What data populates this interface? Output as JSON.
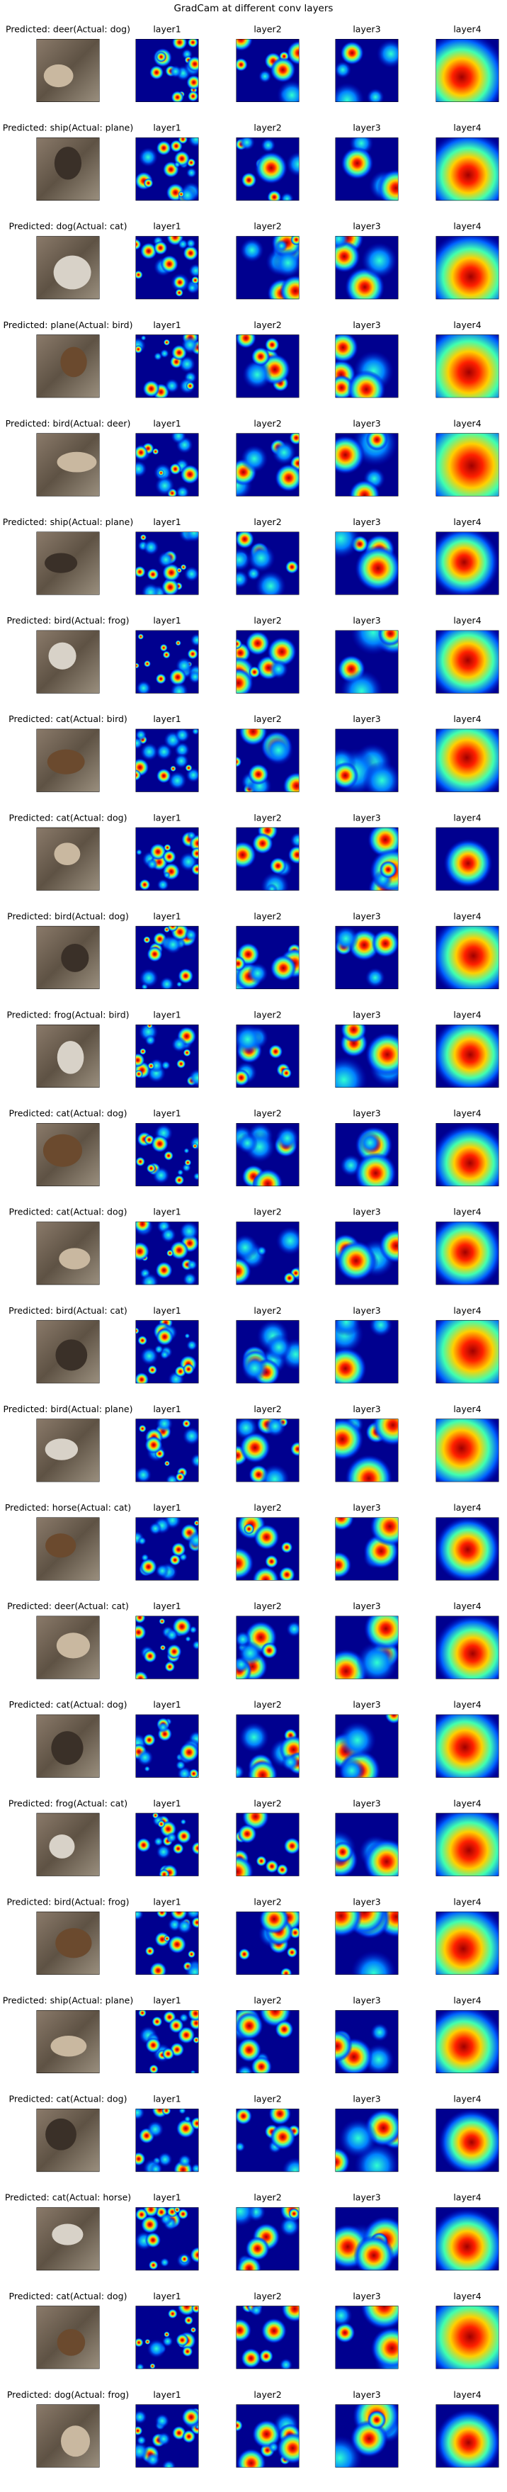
{
  "title": "GradCam at different conv layers",
  "rows": [
    {
      "label": "Predicted: deer(Actual: dog)",
      "layers": [
        "layer1",
        "layer2",
        "layer3",
        "layer4"
      ]
    },
    {
      "label": "Predicted: ship(Actual: plane)",
      "layers": [
        "layer1",
        "layer2",
        "layer3",
        "layer4"
      ]
    },
    {
      "label": "Predicted: dog(Actual: cat)",
      "layers": [
        "layer1",
        "layer2",
        "layer3",
        "layer4"
      ]
    },
    {
      "label": "Predicted: plane(Actual: bird)",
      "layers": [
        "layer1",
        "layer2",
        "layer3",
        "layer4"
      ]
    },
    {
      "label": "Predicted: bird(Actual: deer)",
      "layers": [
        "layer1",
        "layer2",
        "layer3",
        "layer4"
      ]
    },
    {
      "label": "Predicted: ship(Actual: plane)",
      "layers": [
        "layer1",
        "layer2",
        "layer3",
        "layer4"
      ]
    },
    {
      "label": "Predicted: bird(Actual: frog)",
      "layers": [
        "layer1",
        "layer2",
        "layer3",
        "layer4"
      ]
    },
    {
      "label": "Predicted: cat(Actual: bird)",
      "layers": [
        "layer1",
        "layer2",
        "layer3",
        "layer4"
      ]
    },
    {
      "label": "Predicted: cat(Actual: dog)",
      "layers": [
        "layer1",
        "layer2",
        "layer3",
        "layer4"
      ]
    },
    {
      "label": "Predicted: bird(Actual: dog)",
      "layers": [
        "layer1",
        "layer2",
        "layer3",
        "layer4"
      ]
    },
    {
      "label": "Predicted: frog(Actual: bird)",
      "layers": [
        "layer1",
        "layer2",
        "layer3",
        "layer4"
      ]
    },
    {
      "label": "Predicted: cat(Actual: dog)",
      "layers": [
        "layer1",
        "layer2",
        "layer3",
        "layer4"
      ]
    },
    {
      "label": "Predicted: cat(Actual: dog)",
      "layers": [
        "layer1",
        "layer2",
        "layer3",
        "layer4"
      ]
    },
    {
      "label": "Predicted: bird(Actual: cat)",
      "layers": [
        "layer1",
        "layer2",
        "layer3",
        "layer4"
      ]
    },
    {
      "label": "Predicted: bird(Actual: plane)",
      "layers": [
        "layer1",
        "layer2",
        "layer3",
        "layer4"
      ]
    },
    {
      "label": "Predicted: horse(Actual: cat)",
      "layers": [
        "layer1",
        "layer2",
        "layer3",
        "layer4"
      ]
    },
    {
      "label": "Predicted: deer(Actual: cat)",
      "layers": [
        "layer1",
        "layer2",
        "layer3",
        "layer4"
      ]
    },
    {
      "label": "Predicted: cat(Actual: dog)",
      "layers": [
        "layer1",
        "layer2",
        "layer3",
        "layer4"
      ]
    },
    {
      "label": "Predicted: frog(Actual: cat)",
      "layers": [
        "layer1",
        "layer2",
        "layer3",
        "layer4"
      ]
    },
    {
      "label": "Predicted: bird(Actual: frog)",
      "layers": [
        "layer1",
        "layer2",
        "layer3",
        "layer4"
      ]
    },
    {
      "label": "Predicted: ship(Actual: plane)",
      "layers": [
        "layer1",
        "layer2",
        "layer3",
        "layer4"
      ]
    },
    {
      "label": "Predicted: cat(Actual: dog)",
      "layers": [
        "layer1",
        "layer2",
        "layer3",
        "layer4"
      ]
    },
    {
      "label": "Predicted: cat(Actual: horse)",
      "layers": [
        "layer1",
        "layer2",
        "layer3",
        "layer4"
      ]
    },
    {
      "label": "Predicted: cat(Actual: dog)",
      "layers": [
        "layer1",
        "layer2",
        "layer3",
        "layer4"
      ]
    },
    {
      "label": "Predicted: dog(Actual: frog)",
      "layers": [
        "layer1",
        "layer2",
        "layer3",
        "layer4"
      ]
    }
  ]
}
